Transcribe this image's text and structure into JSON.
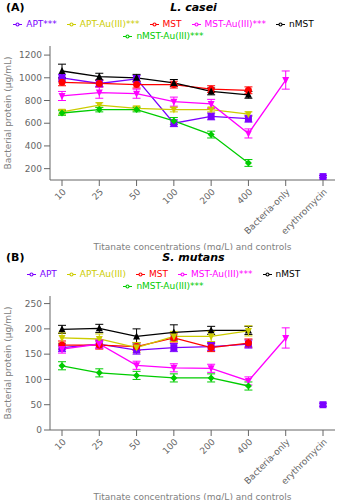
{
  "chart_data": [
    {
      "type": "line",
      "title": "L. casei",
      "annotations": [
        "(A)"
      ],
      "xlabel": "Titanate concentrations (mg/L) and  controls",
      "ylabel": "Bacterial protein (μg/mL)",
      "ylim": [
        100,
        1280
      ],
      "yticks": [
        200,
        400,
        600,
        800,
        1000,
        1200
      ],
      "grid": false,
      "legend": "top",
      "categories": [
        "10",
        "25",
        "50",
        "100",
        "200",
        "400",
        "Bacteria-only",
        "erythromycin"
      ],
      "series": [
        {
          "name": "APT***",
          "color": "#7B00FF",
          "marker": "square",
          "values": [
            1000,
            950,
            990,
            600,
            660,
            640,
            null,
            130
          ],
          "errors": [
            30,
            30,
            30,
            30,
            30,
            30,
            null,
            10
          ]
        },
        {
          "name": "MST",
          "color": "#FF0000",
          "marker": "circle",
          "values": [
            960,
            950,
            940,
            940,
            900,
            890,
            null,
            null
          ],
          "errors": [
            30,
            30,
            30,
            30,
            30,
            30,
            null,
            null
          ]
        },
        {
          "name": "nMST",
          "color": "#000000",
          "marker": "triangle-up",
          "values": [
            1060,
            1010,
            1000,
            955,
            880,
            850,
            null,
            null
          ],
          "errors": [
            60,
            30,
            30,
            30,
            30,
            30,
            null,
            null
          ]
        },
        {
          "name": "APT-Au(III)***",
          "color": "#CCCC00",
          "marker": "triangle-down",
          "values": [
            700,
            760,
            730,
            720,
            720,
            680,
            null,
            null
          ],
          "errors": [
            20,
            20,
            20,
            20,
            20,
            20,
            null,
            null
          ]
        },
        {
          "name": "MST-Au(III)***",
          "color": "#FF00FF",
          "marker": "triangle-down",
          "values": [
            840,
            870,
            860,
            790,
            770,
            510,
            980,
            null
          ],
          "errors": [
            40,
            50,
            40,
            40,
            40,
            40,
            80,
            null
          ]
        },
        {
          "name": "nMST-Au(III)***",
          "color": "#00CC00",
          "marker": "diamond",
          "values": [
            690,
            720,
            720,
            620,
            500,
            250,
            null,
            null
          ],
          "errors": [
            20,
            20,
            20,
            30,
            30,
            30,
            null,
            null
          ]
        }
      ]
    },
    {
      "type": "line",
      "title": "S. mutans",
      "annotations": [
        "(B)"
      ],
      "xlabel": "Titanate concentrations (mg/L) and  controls",
      "ylabel": "Bacterial protein (μg/mL)",
      "ylim": [
        0,
        265
      ],
      "yticks": [
        0,
        50,
        100,
        150,
        200,
        250
      ],
      "grid": false,
      "legend": "top",
      "categories": [
        "10",
        "25",
        "50",
        "100",
        "200",
        "400",
        "Bacteria-only",
        "erythromycin"
      ],
      "series": [
        {
          "name": "APT",
          "color": "#7B00FF",
          "marker": "square",
          "values": [
            163,
            170,
            158,
            163,
            165,
            170,
            null,
            50
          ],
          "errors": [
            8,
            8,
            8,
            8,
            8,
            8,
            null,
            3
          ]
        },
        {
          "name": "MST",
          "color": "#FF0000",
          "marker": "circle",
          "values": [
            168,
            168,
            165,
            182,
            163,
            172,
            null,
            null
          ],
          "errors": [
            8,
            8,
            8,
            8,
            8,
            8,
            null,
            null
          ]
        },
        {
          "name": "nMST",
          "color": "#000000",
          "marker": "triangle-up",
          "values": [
            199,
            201,
            185,
            193,
            197,
            197,
            null,
            null
          ],
          "errors": [
            8,
            8,
            15,
            15,
            8,
            8,
            null,
            null
          ]
        },
        {
          "name": "APT-Au(III)",
          "color": "#CCCC00",
          "marker": "triangle-down",
          "values": [
            182,
            180,
            163,
            185,
            185,
            196,
            null,
            null
          ],
          "errors": [
            10,
            10,
            10,
            10,
            10,
            10,
            null,
            null
          ]
        },
        {
          "name": "MST-Au(III)***",
          "color": "#FF00FF",
          "marker": "triangle-down",
          "values": [
            160,
            170,
            128,
            123,
            122,
            97,
            182,
            null
          ],
          "errors": [
            8,
            8,
            8,
            8,
            8,
            8,
            20,
            null
          ]
        },
        {
          "name": "nMST-Au(III)***",
          "color": "#00CC00",
          "marker": "diamond",
          "values": [
            127,
            113,
            108,
            103,
            103,
            87,
            null,
            null
          ],
          "errors": [
            8,
            8,
            8,
            8,
            8,
            8,
            null,
            null
          ]
        }
      ]
    }
  ]
}
